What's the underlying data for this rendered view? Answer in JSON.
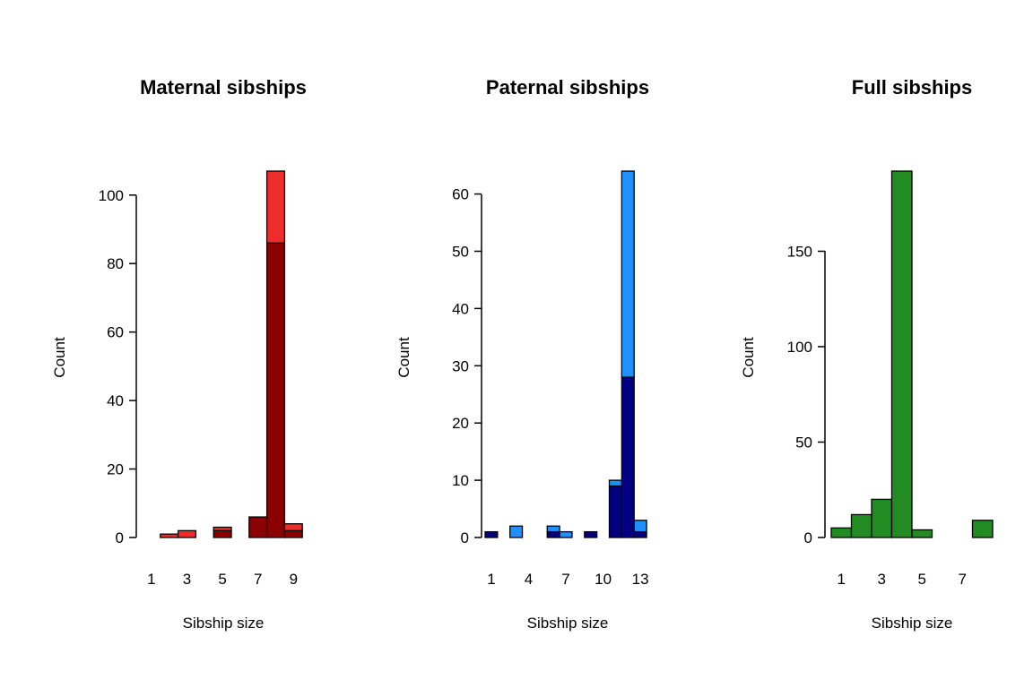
{
  "chart_data": [
    {
      "type": "bar",
      "title": "Maternal sibships",
      "xlabel": "Sibship size",
      "ylabel": "Count",
      "categories": [
        1,
        2,
        3,
        4,
        5,
        6,
        7,
        8,
        9
      ],
      "x_ticks": [
        1,
        3,
        5,
        7,
        9
      ],
      "y_ticks": [
        0,
        20,
        40,
        60,
        80,
        100
      ],
      "ylim": [
        0,
        107
      ],
      "stacked": true,
      "series": [
        {
          "color": "#8B0000",
          "values": [
            0,
            0,
            0,
            0,
            2,
            0,
            6,
            86,
            2
          ]
        },
        {
          "color": "#EE2C2C",
          "values": [
            0,
            1,
            2,
            0,
            1,
            0,
            0,
            21,
            2
          ]
        }
      ]
    },
    {
      "type": "bar",
      "title": "Paternal sibships",
      "xlabel": "Sibship size",
      "ylabel": "Count",
      "categories": [
        1,
        2,
        3,
        4,
        5,
        6,
        7,
        8,
        9,
        10,
        11,
        12,
        13
      ],
      "x_ticks": [
        1,
        4,
        7,
        10,
        13
      ],
      "y_ticks": [
        0,
        10,
        20,
        30,
        40,
        50,
        60
      ],
      "ylim": [
        0,
        64
      ],
      "stacked": true,
      "series": [
        {
          "color": "#000080",
          "values": [
            1,
            0,
            0,
            0,
            0,
            1,
            0,
            0,
            1,
            0,
            9,
            28,
            1
          ]
        },
        {
          "color": "#1E90FF",
          "values": [
            0,
            0,
            2,
            0,
            0,
            1,
            1,
            0,
            0,
            0,
            1,
            36,
            2
          ]
        }
      ]
    },
    {
      "type": "bar",
      "title": "Full sibships",
      "xlabel": "Sibship size",
      "ylabel": "Count",
      "categories": [
        1,
        2,
        3,
        4,
        5,
        6,
        7,
        8
      ],
      "x_ticks": [
        1,
        3,
        5,
        7
      ],
      "y_ticks": [
        0,
        50,
        100,
        150
      ],
      "ylim": [
        0,
        192
      ],
      "stacked": false,
      "series": [
        {
          "color": "#228B22",
          "values": [
            5,
            12,
            20,
            192,
            4,
            0,
            0,
            9
          ]
        }
      ]
    }
  ]
}
